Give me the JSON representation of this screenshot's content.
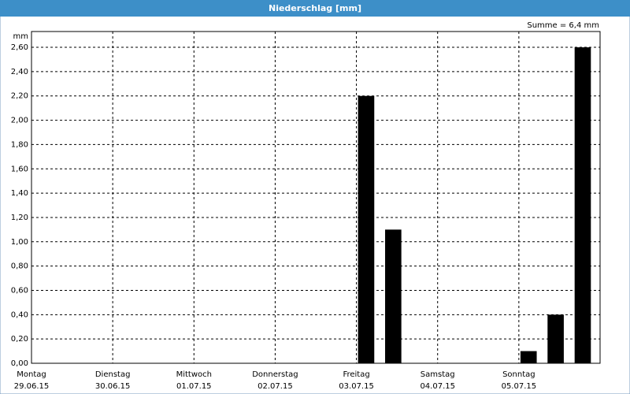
{
  "chart_data": {
    "type": "bar",
    "title": "Niederschlag [mm]",
    "y_label": "mm",
    "annotation": "Summe = 6,4 mm",
    "categories": [
      "Montag",
      null,
      null,
      "Dienstag",
      null,
      null,
      "Mittwoch",
      null,
      null,
      "Donnerstag",
      null,
      null,
      "Freitag",
      null,
      null,
      "Samstag",
      null,
      null,
      "Sonntag",
      null,
      null
    ],
    "category_dates": [
      "29.06.15",
      null,
      null,
      "30.06.15",
      null,
      null,
      "01.07.15",
      null,
      null,
      "02.07.15",
      null,
      null,
      "03.07.15",
      null,
      null,
      "04.07.15",
      null,
      null,
      "05.07.15",
      null,
      null
    ],
    "values": [
      0,
      0,
      0,
      0,
      0,
      0,
      0,
      0,
      0,
      0,
      0,
      0,
      2.2,
      1.1,
      0,
      0,
      0,
      0,
      0.1,
      0.4,
      2.6
    ],
    "color": "#000000",
    "ylim": [
      0,
      2.73
    ],
    "yticks": [
      {
        "value": 0,
        "label": "0,00"
      },
      {
        "value": 0.2,
        "label": "0,20"
      },
      {
        "value": 0.4,
        "label": "0,40"
      },
      {
        "value": 0.6,
        "label": "0,60"
      },
      {
        "value": 0.8,
        "label": "0,80"
      },
      {
        "value": 1,
        "label": "1,00"
      },
      {
        "value": 1.2,
        "label": "1,20"
      },
      {
        "value": 1.4,
        "label": "1,40"
      },
      {
        "value": 1.6,
        "label": "1,60"
      },
      {
        "value": 1.8,
        "label": "1,80"
      },
      {
        "value": 2,
        "label": "2,00"
      },
      {
        "value": 2.2,
        "label": "2,20"
      },
      {
        "value": 2.4,
        "label": "2,40"
      },
      {
        "value": 2.6,
        "label": "2,60"
      }
    ],
    "grid": true
  }
}
